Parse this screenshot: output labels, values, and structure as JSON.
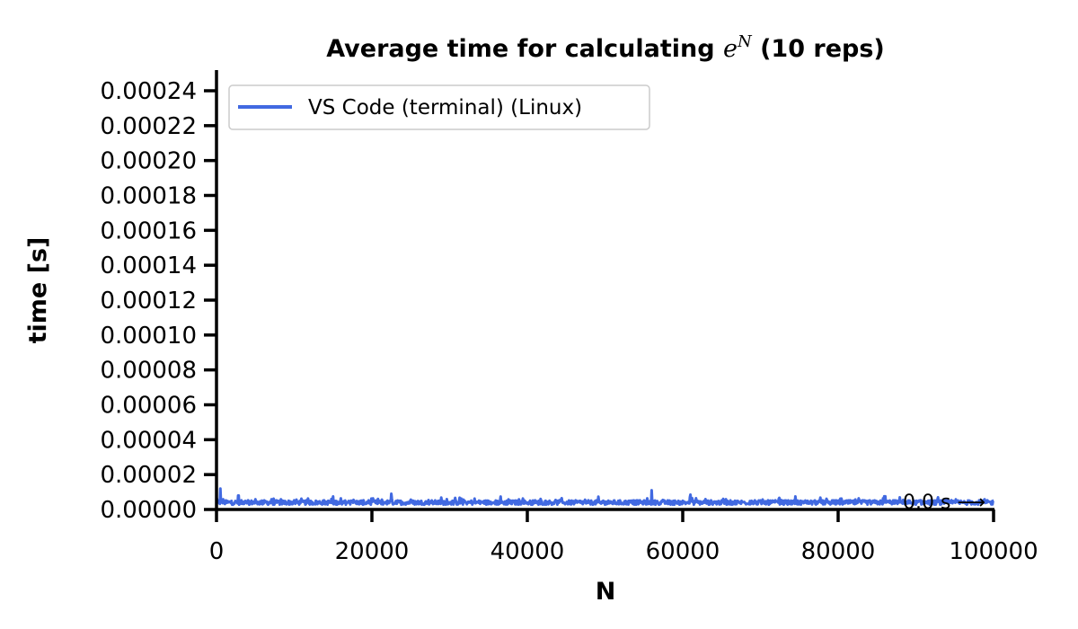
{
  "chart_data": {
    "type": "line",
    "title_prefix": "Average time for calculating ",
    "title_math_base": "e",
    "title_math_exp": "N",
    "title_suffix": " (10 reps)",
    "xlabel": "N",
    "ylabel": "time [s]",
    "xlim": [
      0,
      100000
    ],
    "ylim": [
      0,
      0.00025
    ],
    "x_ticks": [
      "0",
      "20000",
      "40000",
      "60000",
      "80000",
      "100000"
    ],
    "y_ticks": [
      "0.00000",
      "0.00002",
      "0.00004",
      "0.00006",
      "0.00008",
      "0.00010",
      "0.00012",
      "0.00014",
      "0.00016",
      "0.00018",
      "0.00020",
      "0.00022",
      "0.00024"
    ],
    "grid": false,
    "legend_position": "top-left",
    "annotation": "0.0 s ⟶",
    "series": [
      {
        "name": "VS Code (terminal) (Linux)",
        "color": "#4169e1",
        "x_start": 0,
        "x_end": 100000,
        "baseline": 4e-06,
        "noise": 2.5e-06,
        "spikes": [
          [
            500,
            1.2e-05
          ],
          [
            2800,
            8e-06
          ],
          [
            22500,
            9e-06
          ],
          [
            56000,
            1.1e-05
          ],
          [
            61000,
            8.5e-06
          ],
          [
            86000,
            7.5e-06
          ],
          [
            100000,
            5e-06
          ]
        ]
      }
    ]
  }
}
